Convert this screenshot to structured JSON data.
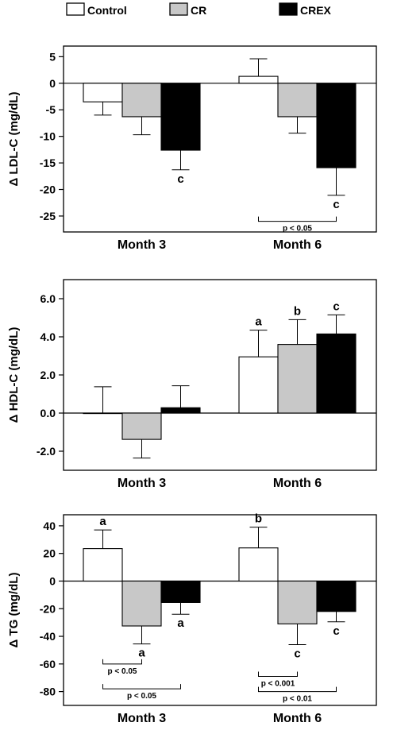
{
  "legend": {
    "items": [
      {
        "label": "Control",
        "color": "#ffffff"
      },
      {
        "label": "CR",
        "color": "#c8c8c8"
      },
      {
        "label": "CREX",
        "color": "#000000"
      }
    ]
  },
  "chart_data": [
    {
      "type": "bar",
      "categories": [
        "Month 3",
        "Month 6"
      ],
      "ylabel": "Δ LDL-C (mg/dL)",
      "ylim": [
        -28,
        7
      ],
      "yticks": [
        5,
        0,
        -5,
        -10,
        -15,
        -20,
        -25
      ],
      "tick_format": "int",
      "series": [
        {
          "name": "Control",
          "values": [
            -3.5,
            1.3
          ],
          "errors": [
            2.5,
            3.3
          ],
          "labels": [
            "",
            ""
          ],
          "label_pos": [
            "",
            ""
          ]
        },
        {
          "name": "CR",
          "values": [
            -6.3,
            -6.3
          ],
          "errors": [
            3.4,
            3.1
          ],
          "labels": [
            "",
            ""
          ],
          "label_pos": [
            "",
            ""
          ]
        },
        {
          "name": "CREX",
          "values": [
            -12.6,
            -15.9
          ],
          "errors": [
            3.7,
            5.2
          ],
          "labels": [
            "c",
            "c"
          ],
          "label_pos": [
            "below",
            "below"
          ]
        }
      ],
      "comparisons": [
        {
          "category": 1,
          "from": 0,
          "to": 2,
          "text": "p < 0.05",
          "y": -26
        }
      ]
    },
    {
      "type": "bar",
      "categories": [
        "Month 3",
        "Month 6"
      ],
      "ylabel": "Δ HDL-C (mg/dL)",
      "ylim": [
        -3.0,
        7.0
      ],
      "yticks": [
        6.0,
        4.0,
        2.0,
        0.0,
        -2.0
      ],
      "tick_format": "1f",
      "series": [
        {
          "name": "Control",
          "values": [
            0.0,
            2.95
          ],
          "errors": [
            1.38,
            1.4
          ],
          "labels": [
            "",
            "a"
          ],
          "label_pos": [
            "",
            "above"
          ]
        },
        {
          "name": "CR",
          "values": [
            -1.38,
            3.6
          ],
          "errors": [
            0.98,
            1.3
          ],
          "labels": [
            "",
            "b"
          ],
          "label_pos": [
            "",
            "above"
          ]
        },
        {
          "name": "CREX",
          "values": [
            0.28,
            4.15
          ],
          "errors": [
            1.15,
            1.0
          ],
          "labels": [
            "",
            "c"
          ],
          "label_pos": [
            "",
            "above"
          ]
        }
      ],
      "comparisons": []
    },
    {
      "type": "bar",
      "categories": [
        "Month 3",
        "Month 6"
      ],
      "ylabel": "Δ TG (mg/dL)",
      "ylim": [
        -90,
        48
      ],
      "yticks": [
        40,
        20,
        0,
        -20,
        -40,
        -60,
        -80
      ],
      "tick_format": "int",
      "series": [
        {
          "name": "Control",
          "values": [
            23.5,
            24
          ],
          "errors": [
            13.5,
            15
          ],
          "labels": [
            "a",
            "b"
          ],
          "label_pos": [
            "above",
            "above"
          ]
        },
        {
          "name": "CR",
          "values": [
            -32.5,
            -31
          ],
          "errors": [
            13,
            15
          ],
          "labels": [
            "a",
            "c"
          ],
          "label_pos": [
            "below",
            "below"
          ]
        },
        {
          "name": "CREX",
          "values": [
            -15.5,
            -22
          ],
          "errors": [
            8.5,
            7.5
          ],
          "labels": [
            "a",
            "c"
          ],
          "label_pos": [
            "below",
            "below"
          ]
        }
      ],
      "comparisons": [
        {
          "category": 0,
          "from": 0,
          "to": 1,
          "text": "p < 0.05",
          "y": -60
        },
        {
          "category": 0,
          "from": 0,
          "to": 2,
          "text": "p < 0.05",
          "y": -78
        },
        {
          "category": 1,
          "from": 0,
          "to": 1,
          "text": "p < 0.001",
          "y": -69
        },
        {
          "category": 1,
          "from": 0,
          "to": 2,
          "text": "p < 0.01",
          "y": -80
        }
      ]
    }
  ]
}
